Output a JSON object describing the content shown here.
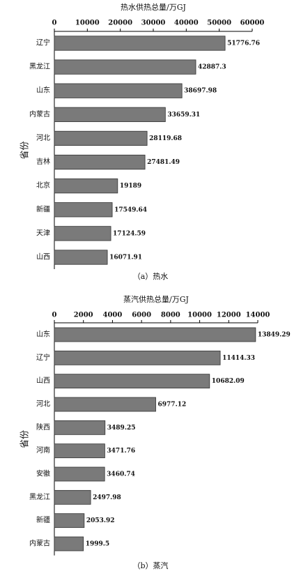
{
  "chart_data": [
    {
      "type": "bar",
      "orientation": "horizontal",
      "title": "热水供热总量/万GJ",
      "y_label": "省份",
      "caption": "（a）热水",
      "categories": [
        "辽宁",
        "黑龙江",
        "山东",
        "内蒙古",
        "河北",
        "吉林",
        "北京",
        "新疆",
        "天津",
        "山西"
      ],
      "values": [
        51776.76,
        42887.3,
        38697.98,
        33659.31,
        28119.68,
        27481.49,
        19189,
        17549.64,
        17124.59,
        16071.91
      ],
      "color": "#7a7a7a",
      "xlim": [
        0,
        60000
      ],
      "xticks": [
        0,
        10000,
        20000,
        30000,
        40000,
        50000,
        60000
      ]
    },
    {
      "type": "bar",
      "orientation": "horizontal",
      "title": "蒸汽供热总量/万GJ",
      "y_label": "省份",
      "caption": "（b）蒸汽",
      "categories": [
        "山东",
        "辽宁",
        "山西",
        "河北",
        "陕西",
        "河南",
        "安徽",
        "黑龙江",
        "新疆",
        "内蒙古"
      ],
      "values": [
        13849.29,
        11414.33,
        10682.09,
        6977.12,
        3489.25,
        3471.76,
        3460.74,
        2497.98,
        2053.92,
        1999.5
      ],
      "color": "#7a7a7a",
      "xlim": [
        0,
        14000
      ],
      "xticks": [
        0,
        2000,
        4000,
        6000,
        8000,
        10000,
        12000,
        14000
      ]
    }
  ]
}
